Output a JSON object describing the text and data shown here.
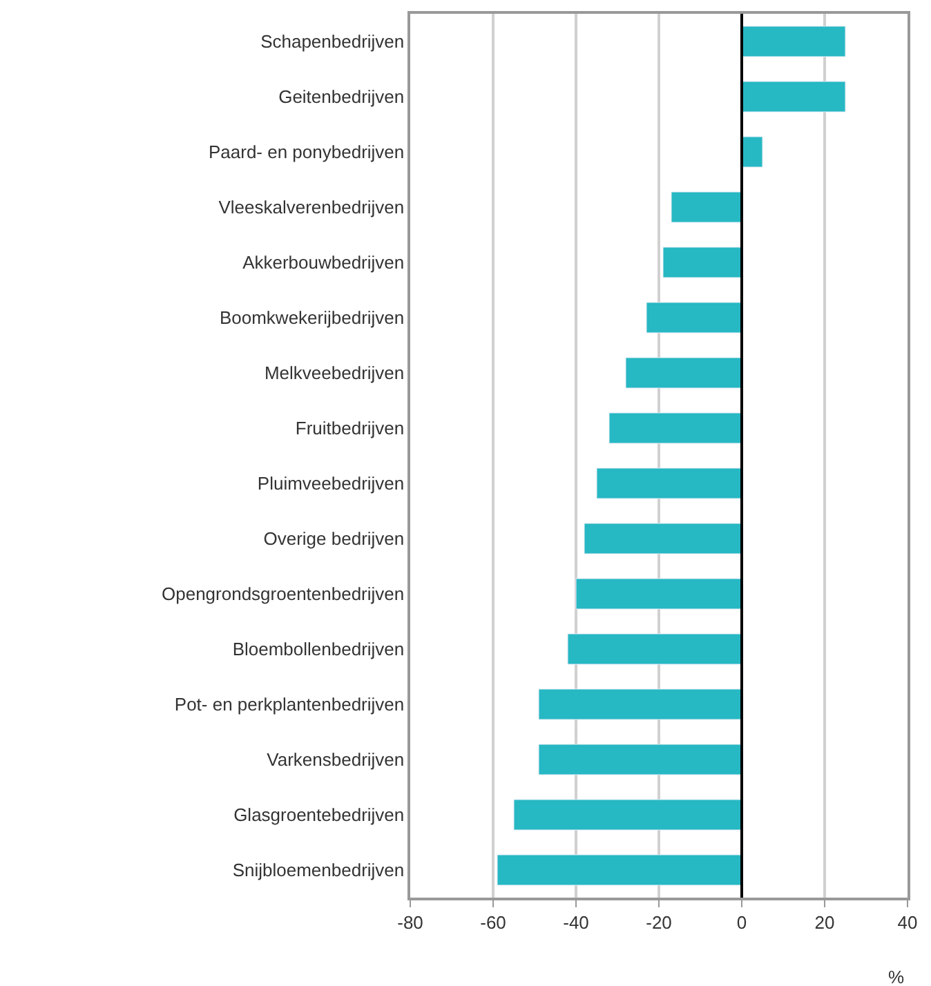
{
  "chart_data": {
    "type": "bar",
    "orientation": "horizontal",
    "xlabel": "%",
    "categories": [
      "Schapenbedrijven",
      "Geitenbedrijven",
      "Paard- en ponybedrijven",
      "Vleeskalverenbedrijven",
      "Akkerbouwbedrijven",
      "Boomkwekerijbedrijven",
      "Melkveebedrijven",
      "Fruitbedrijven",
      "Pluimveebedrijven",
      "Overige bedrijven",
      "Opengrondsgroentenbedrijven",
      "Bloembollenbedrijven",
      "Pot- en perkplantenbedrijven",
      "Varkensbedrijven",
      "Glasgroentebedrijven",
      "Snijbloemenbedrijven"
    ],
    "values": [
      25,
      25,
      5,
      -17,
      -19,
      -23,
      -28,
      -32,
      -35,
      -38,
      -40,
      -42,
      -49,
      -49,
      -55,
      -59
    ],
    "color": "#26b8c3",
    "xlim": [
      -80,
      40
    ],
    "xticks": [
      -80,
      -60,
      -40,
      -20,
      0,
      20,
      40
    ],
    "ref_lines": [
      {
        "axis": "x",
        "value": 0,
        "color": "#000000"
      }
    ],
    "grid": "x"
  }
}
